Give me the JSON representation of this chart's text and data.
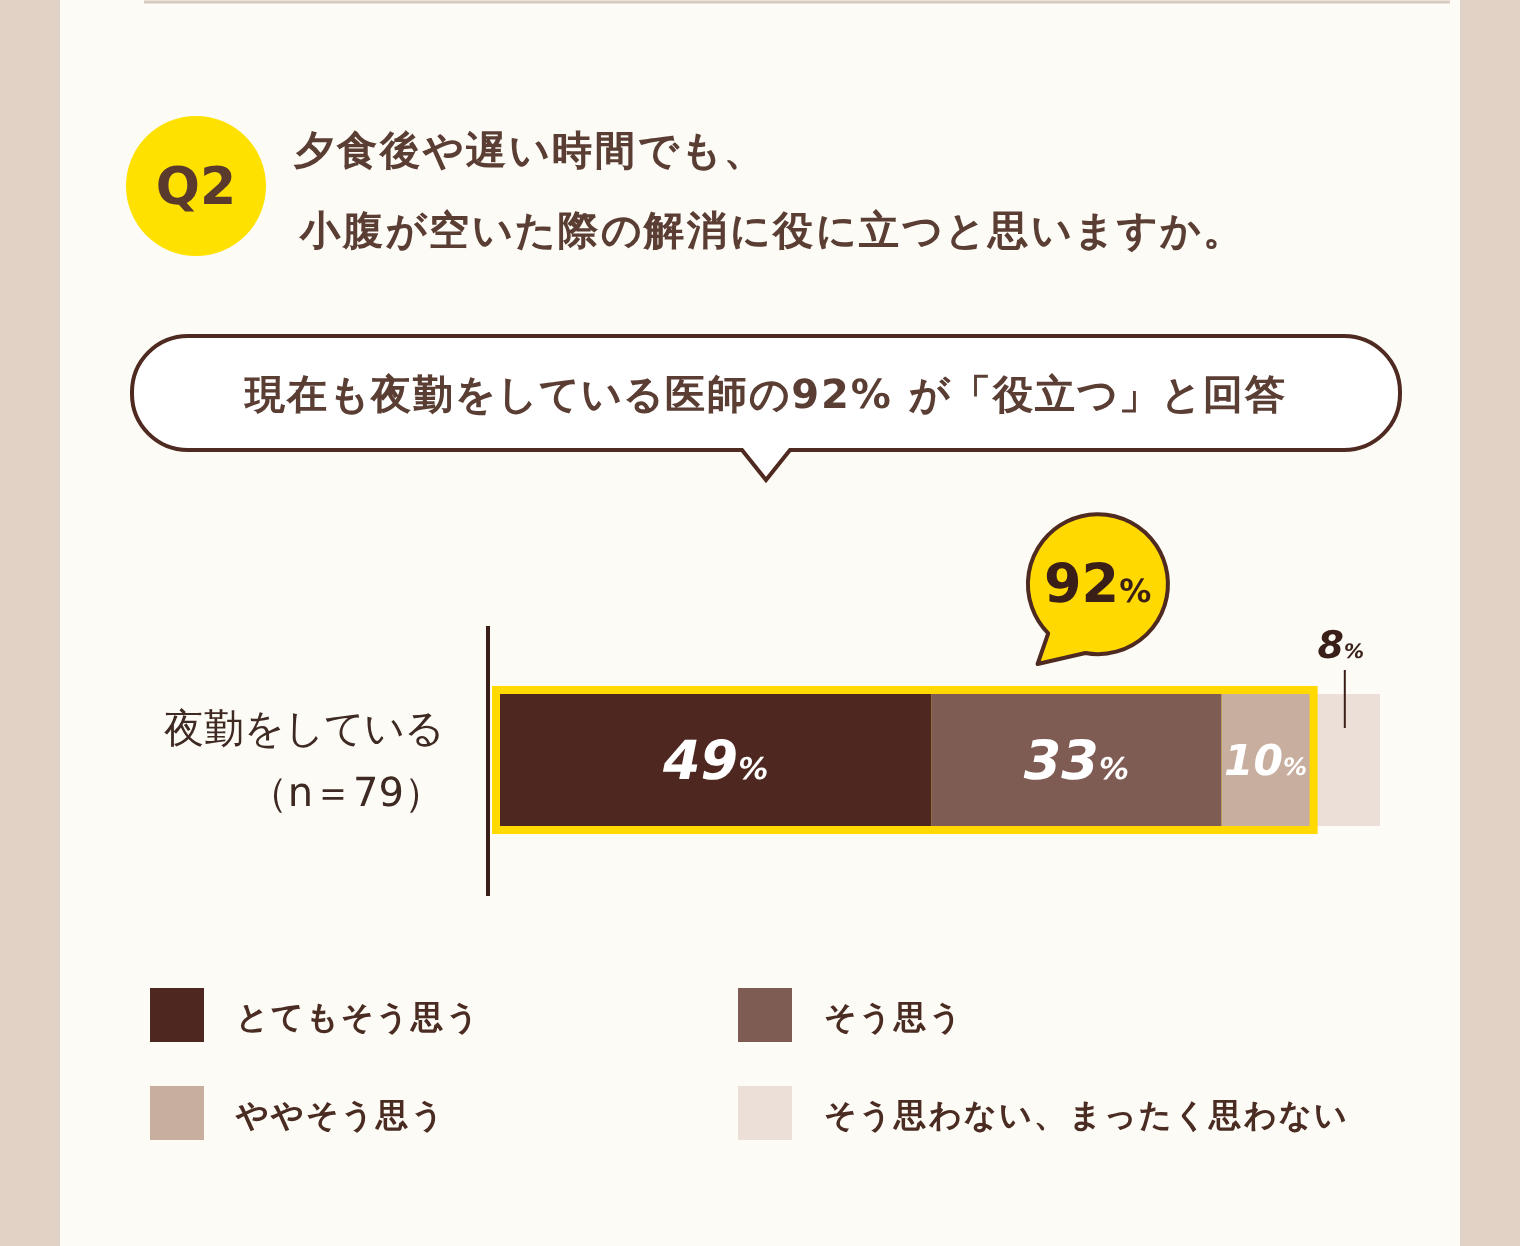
{
  "chart_data": {
    "type": "bar",
    "orientation": "horizontal",
    "stacked": true,
    "title": "夕食後や遅い時間でも、小腹が空いた際の解消に役に立つと思いますか。",
    "subtitle": "現在も夜勤をしている医師の92% が「役立つ」と回答",
    "annotations": [
      "Q2"
    ],
    "categories": [
      "夜勤をしている（n＝79）"
    ],
    "series": [
      {
        "name": "とてもそう思う",
        "color": "#4e2820",
        "values": [
          49
        ],
        "value_labels": [
          "49%"
        ]
      },
      {
        "name": "そう思う",
        "color": "#7e5b53",
        "values": [
          33
        ],
        "value_labels": [
          "33%"
        ]
      },
      {
        "name": "ややそう思う",
        "color": "#c8ae9f",
        "values": [
          10
        ],
        "value_labels": [
          "10%"
        ]
      },
      {
        "name": "そう思わない、まったく思わない",
        "color": "#ecdfd8",
        "values": [
          8
        ],
        "value_labels": [
          "8%"
        ]
      }
    ],
    "bands": [
      {
        "axis": "x",
        "from": 0,
        "to": 92,
        "label": "92%",
        "color": "#ffd900"
      }
    ],
    "legend": "bottom"
  }
}
